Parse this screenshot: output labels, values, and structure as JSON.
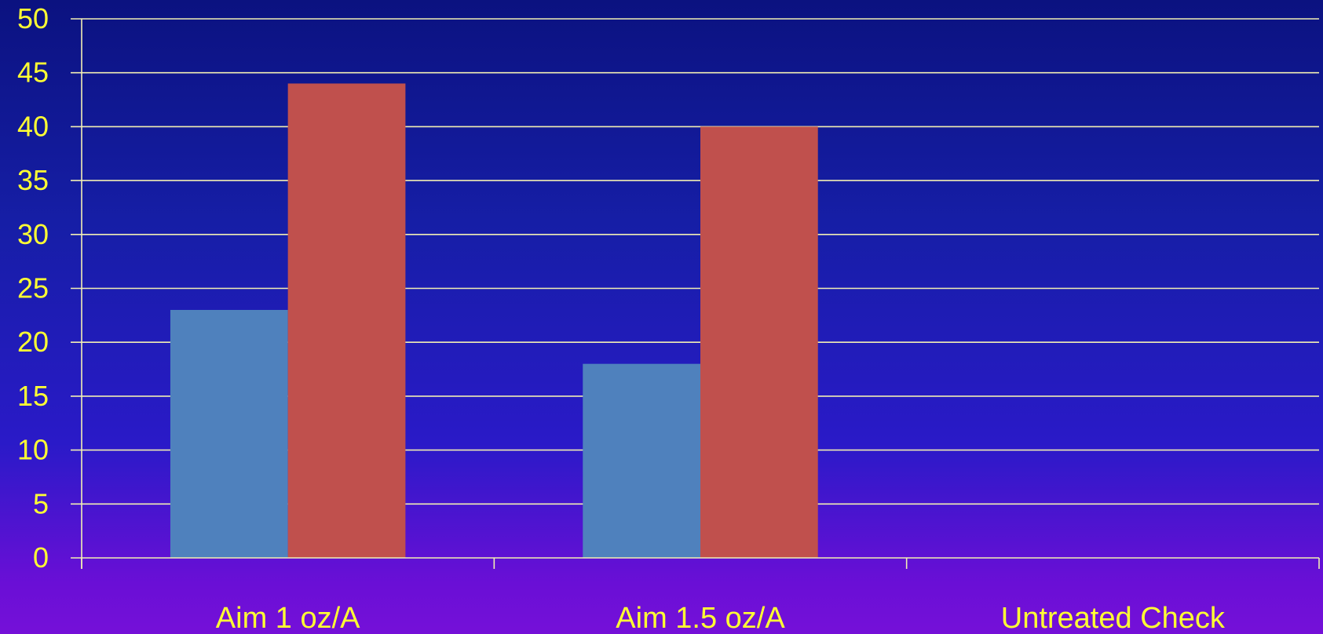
{
  "chart_data": {
    "type": "bar",
    "categories": [
      "Aim 1 oz/A",
      "Aim 1.5 oz/A",
      "Untreated Check"
    ],
    "series": [
      {
        "values": [
          23,
          18,
          null
        ],
        "color": "#4f81bd"
      },
      {
        "values": [
          44,
          40,
          null
        ],
        "color": "#c0504d"
      }
    ],
    "ylim": [
      0,
      50
    ],
    "yticks": [
      0,
      5,
      10,
      15,
      20,
      25,
      30,
      35,
      40,
      45,
      50
    ],
    "grid": true,
    "legend": "none"
  },
  "colors": {
    "text": "#ffff33",
    "gridline": "#f2efb4",
    "axis": "#f2efb4"
  }
}
